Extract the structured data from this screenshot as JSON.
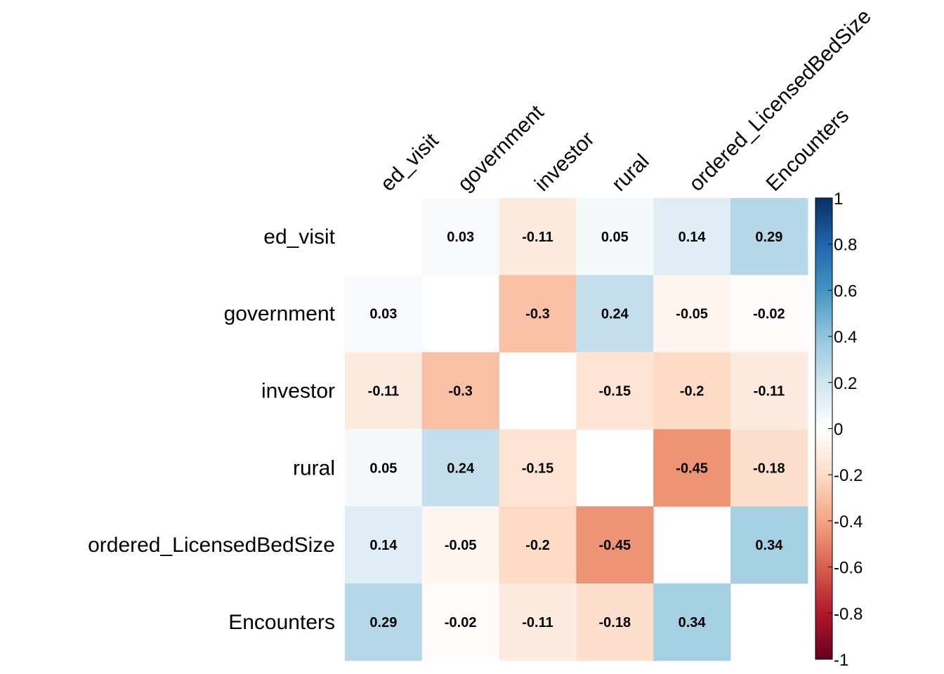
{
  "chart_data": {
    "type": "heatmap",
    "variables": [
      "ed_visit",
      "government",
      "investor",
      "rural",
      "ordered_LicensedBedSize",
      "Encounters"
    ],
    "matrix": [
      [
        null,
        0.03,
        -0.11,
        0.05,
        0.14,
        0.29
      ],
      [
        0.03,
        null,
        -0.3,
        0.24,
        -0.05,
        -0.02
      ],
      [
        -0.11,
        -0.3,
        null,
        -0.15,
        -0.2,
        -0.11
      ],
      [
        0.05,
        0.24,
        -0.15,
        null,
        -0.45,
        -0.18
      ],
      [
        0.14,
        -0.05,
        -0.2,
        -0.45,
        null,
        0.34
      ],
      [
        0.29,
        -0.02,
        -0.11,
        -0.18,
        0.34,
        null
      ]
    ],
    "labels": [
      [
        "",
        "0.03",
        "-0.11",
        "0.05",
        "0.14",
        "0.29"
      ],
      [
        "0.03",
        "",
        "-0.3",
        "0.24",
        "-0.05",
        "-0.02"
      ],
      [
        "-0.11",
        "-0.3",
        "",
        "-0.15",
        "-0.2",
        "-0.11"
      ],
      [
        "0.05",
        "0.24",
        "-0.15",
        "",
        "-0.45",
        "-0.18"
      ],
      [
        "0.14",
        "-0.05",
        "-0.2",
        "-0.45",
        "",
        "0.34"
      ],
      [
        "0.29",
        "-0.02",
        "-0.11",
        "-0.18",
        "0.34",
        ""
      ]
    ],
    "colorbar": {
      "range": [
        -1,
        1
      ],
      "ticks": [
        1,
        0.8,
        0.6,
        0.4,
        0.2,
        0,
        -0.2,
        -0.4,
        -0.6,
        -0.8,
        -1
      ],
      "tick_labels": [
        "1",
        "0.8",
        "0.6",
        "0.4",
        "0.2",
        "0",
        "-0.2",
        "-0.4",
        "-0.6",
        "-0.8",
        "-1"
      ],
      "palette": [
        "#67001F",
        "#B2182B",
        "#D6604D",
        "#F4A582",
        "#FDDBC7",
        "#FFFFFF",
        "#D1E5F0",
        "#92C5DE",
        "#4393C3",
        "#2166AC",
        "#053061"
      ]
    }
  }
}
